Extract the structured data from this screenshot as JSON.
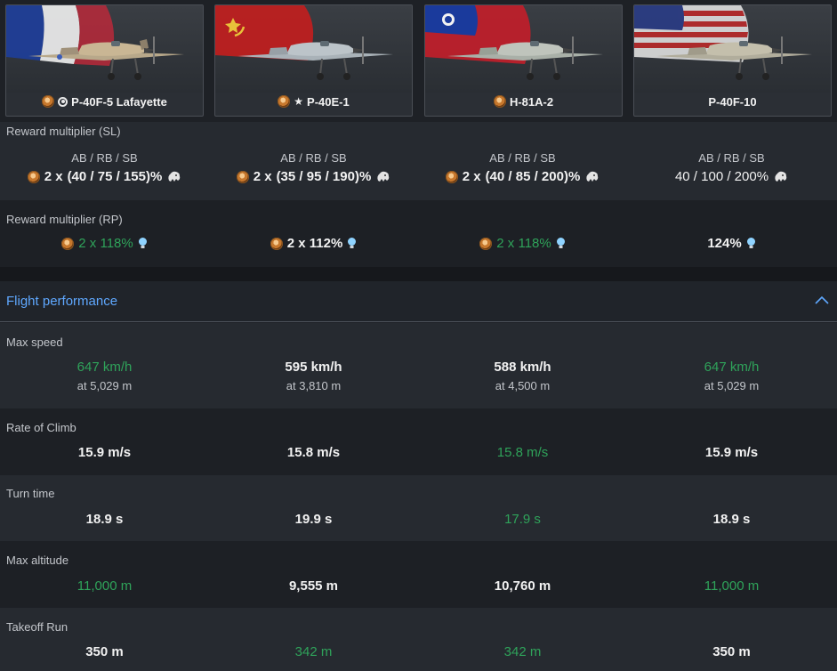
{
  "vehicles": [
    {
      "name": "P-40F-5 Lafayette",
      "prefix": "ring",
      "has_medal": true,
      "flag": "france"
    },
    {
      "name": "P-40E-1",
      "prefix": "star",
      "has_medal": true,
      "flag": "ussr"
    },
    {
      "name": "H-81A-2",
      "prefix": "",
      "has_medal": true,
      "flag": "china"
    },
    {
      "name": "P-40F-10",
      "prefix": "",
      "has_medal": false,
      "flag": "usa"
    }
  ],
  "reward_sl": {
    "label": "Reward multiplier (SL)",
    "modes": "AB / RB / SB",
    "values": [
      {
        "mult": "2 x",
        "rest": "(40 / 75 / 155)%",
        "medal": true
      },
      {
        "mult": "2 x",
        "rest": "(35 / 95 / 190)%",
        "medal": true
      },
      {
        "mult": "2 x",
        "rest": "(40 / 85 / 200)%",
        "medal": true
      },
      {
        "mult": "",
        "rest": "40 / 100 / 200%",
        "medal": false
      }
    ]
  },
  "reward_rp": {
    "label": "Reward multiplier (RP)",
    "values": [
      {
        "text": "2 x 118%",
        "green": true,
        "medal": true
      },
      {
        "text": "2 x 112%",
        "green": false,
        "medal": true
      },
      {
        "text": "2 x 118%",
        "green": true,
        "medal": true
      },
      {
        "text": "124%",
        "green": false,
        "medal": false
      }
    ]
  },
  "section": {
    "title": "Flight performance"
  },
  "max_speed": {
    "label": "Max speed",
    "values": [
      {
        "v": "647 km/h",
        "sub": "at 5,029 m",
        "green": true
      },
      {
        "v": "595 km/h",
        "sub": "at 3,810 m",
        "green": false
      },
      {
        "v": "588 km/h",
        "sub": "at 4,500 m",
        "green": false
      },
      {
        "v": "647 km/h",
        "sub": "at 5,029 m",
        "green": true
      }
    ]
  },
  "rate_of_climb": {
    "label": "Rate of Climb",
    "values": [
      {
        "v": "15.9 m/s",
        "green": false
      },
      {
        "v": "15.8 m/s",
        "green": false
      },
      {
        "v": "15.8 m/s",
        "green": true
      },
      {
        "v": "15.9 m/s",
        "green": false
      }
    ]
  },
  "turn_time": {
    "label": "Turn time",
    "values": [
      {
        "v": "18.9 s",
        "green": false
      },
      {
        "v": "19.9 s",
        "green": false
      },
      {
        "v": "17.9 s",
        "green": true
      },
      {
        "v": "18.9 s",
        "green": false
      }
    ]
  },
  "max_altitude": {
    "label": "Max altitude",
    "values": [
      {
        "v": "11,000 m",
        "green": true
      },
      {
        "v": "9,555 m",
        "green": false
      },
      {
        "v": "10,760 m",
        "green": false
      },
      {
        "v": "11,000 m",
        "green": true
      }
    ]
  },
  "takeoff_run": {
    "label": "Takeoff Run",
    "values": [
      {
        "v": "350 m",
        "green": false
      },
      {
        "v": "342 m",
        "green": true
      },
      {
        "v": "342 m",
        "green": true
      },
      {
        "v": "350 m",
        "green": false
      }
    ]
  },
  "colors": {
    "green": "#2fa35a",
    "accent": "#5fa8ff"
  }
}
